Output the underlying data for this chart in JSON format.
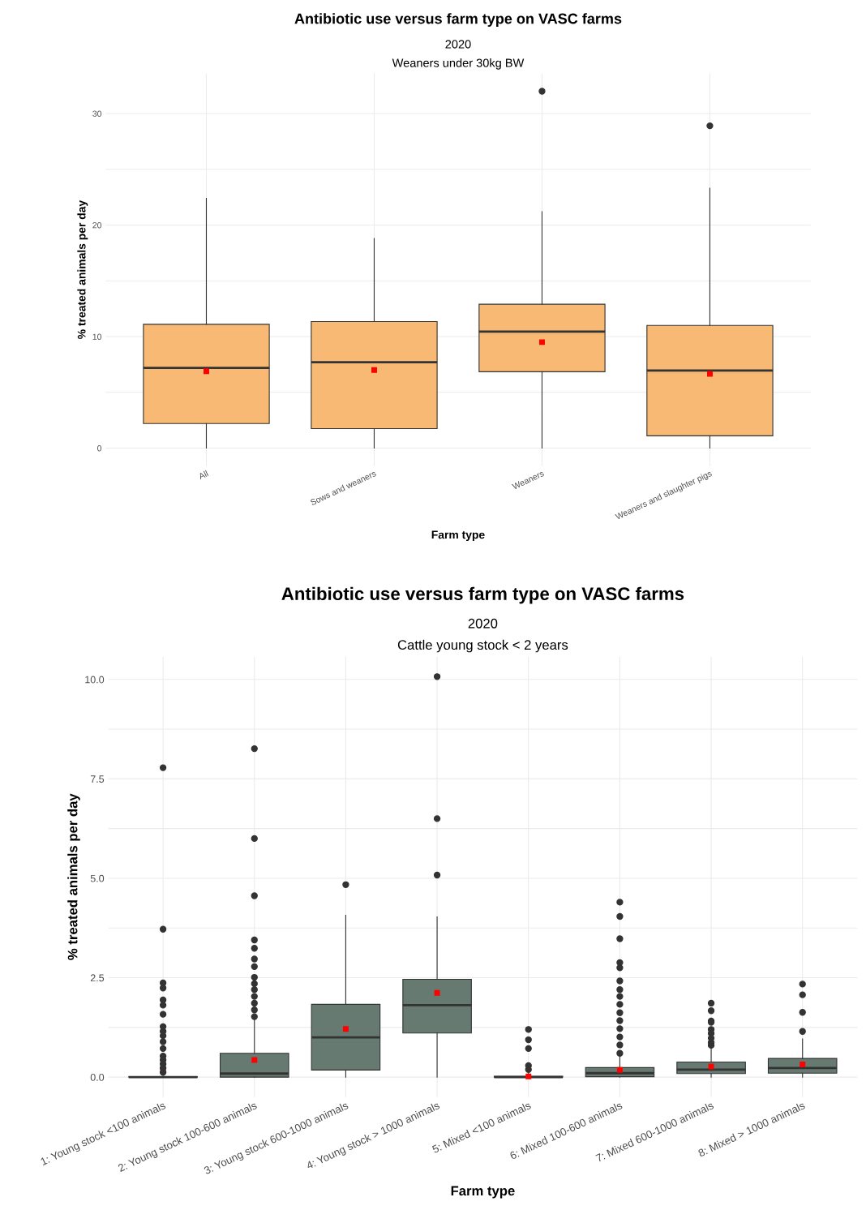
{
  "chart_data": [
    {
      "type": "box",
      "title": "Antibiotic use versus farm type on VASC farms",
      "subtitle": "2020\nWeaners under 30kg BW",
      "xlabel": "Farm type",
      "ylabel": "% treated animals per day",
      "color": "#f7b973",
      "grid": true,
      "categories": [
        "All",
        "Sows and weaners",
        "Weaners",
        "Weaners and slaughter pigs"
      ],
      "ylim": [
        -1.6,
        33.6
      ],
      "yticks": [
        0,
        {
          "value": 5,
          "label": null
        },
        10,
        {
          "value": 15,
          "label": null
        },
        20,
        {
          "value": 25,
          "label": null
        },
        30
      ],
      "boxes": [
        {
          "low": 0,
          "q1": 2.2,
          "median": 7.2,
          "q3": 11.1,
          "high": 22.4,
          "mean": 6.9
        },
        {
          "low": 0,
          "q1": 1.75,
          "median": 7.7,
          "q3": 11.35,
          "high": 18.8,
          "mean": 7.0
        },
        {
          "low": 0,
          "q1": 6.85,
          "median": 10.45,
          "q3": 12.9,
          "high": 21.2,
          "mean": 9.5,
          "outliers": [
            32.0
          ]
        },
        {
          "low": 0,
          "q1": 1.1,
          "median": 6.95,
          "q3": 11.0,
          "high": 23.3,
          "mean": 6.65,
          "outliers": [
            28.9
          ]
        }
      ]
    },
    {
      "type": "box",
      "title": "Antibiotic use versus farm type on VASC farms",
      "subtitle": "2020\nCattle young stock < 2 years",
      "xlabel": "Farm type",
      "ylabel": "% treated animals per day",
      "color": "#667a72",
      "grid": true,
      "categories": [
        "1: Young stock <100 animals",
        "2: Young stock 100-600 animals",
        "3: Young stock 600-1000 animals",
        "4: Young stock > 1000 animals",
        "5: Mixed <100 animals",
        "6: Mixed 100-600 animals",
        "7: Mixed 600-1000 animals",
        "8: Mixed > 1000 animals"
      ],
      "ylim": [
        -0.5,
        10.57
      ],
      "yticks": [
        {
          "value": 0,
          "label": "0.0"
        },
        {
          "value": 1.25,
          "label": null
        },
        2.5,
        {
          "value": 3.75,
          "label": null
        },
        {
          "value": 5,
          "label": "5.0"
        },
        {
          "value": 6.25,
          "label": null
        },
        7.5,
        {
          "value": 8.75,
          "label": null
        },
        {
          "value": 10,
          "label": "10.0"
        }
      ],
      "boxes": [
        {
          "low": 0,
          "q1": 0,
          "median": 0,
          "q3": 0.01,
          "high": 0.02,
          "mean": 0.16,
          "outliers": [
            7.78,
            3.72,
            2.37,
            2.24,
            1.94,
            1.81,
            1.58,
            1.27,
            1.15,
            1.04,
            0.89,
            0.72,
            0.53,
            0.43,
            0.33,
            0.23,
            0.12
          ]
        },
        {
          "low": 0,
          "q1": 0,
          "median": 0.09,
          "q3": 0.6,
          "high": 1.45,
          "mean": 0.43,
          "outliers": [
            8.26,
            6.0,
            4.56,
            3.45,
            3.24,
            2.97,
            2.78,
            2.51,
            2.35,
            2.2,
            2.03,
            1.86,
            1.69,
            1.52
          ]
        },
        {
          "low": 0,
          "q1": 0.18,
          "median": 1.0,
          "q3": 1.83,
          "high": 4.07,
          "mean": 1.21,
          "outliers": [
            4.84
          ]
        },
        {
          "low": 0,
          "q1": 1.11,
          "median": 1.81,
          "q3": 2.46,
          "high": 4.03,
          "mean": 2.12,
          "outliers": [
            10.07,
            6.5,
            5.08
          ]
        },
        {
          "low": 0,
          "q1": 0,
          "median": 0,
          "q3": 0.02,
          "high": 0.1,
          "mean": 0.02,
          "outliers": [
            1.2,
            0.94,
            0.72,
            0.29,
            0.19
          ]
        },
        {
          "low": 0,
          "q1": 0.01,
          "median": 0.1,
          "q3": 0.24,
          "high": 0.53,
          "mean": 0.18,
          "outliers": [
            4.4,
            4.04,
            3.48,
            2.88,
            2.75,
            2.42,
            2.2,
            2.03,
            1.83,
            1.62,
            1.42,
            1.22,
            1.01,
            0.81,
            0.6
          ]
        },
        {
          "low": 0,
          "q1": 0.09,
          "median": 0.19,
          "q3": 0.38,
          "high": 0.77,
          "mean": 0.27,
          "outliers": [
            1.86,
            1.67,
            1.41,
            1.38,
            1.2,
            1.1,
            0.98,
            0.87,
            0.8
          ]
        },
        {
          "low": 0,
          "q1": 0.1,
          "median": 0.23,
          "q3": 0.47,
          "high": 0.96,
          "mean": 0.32,
          "outliers": [
            2.34,
            2.07,
            1.63,
            1.15
          ]
        }
      ]
    }
  ]
}
